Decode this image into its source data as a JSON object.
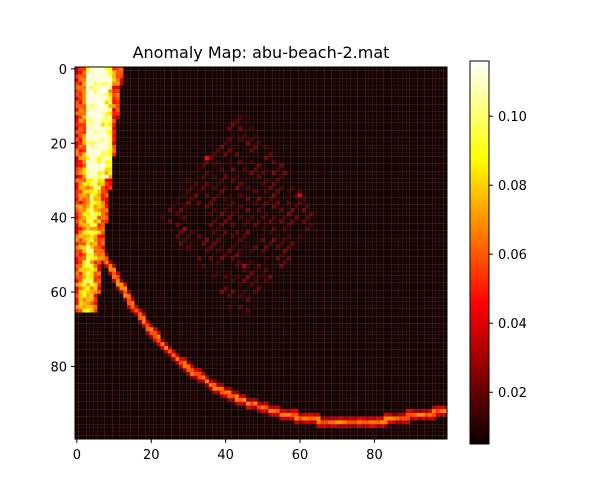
{
  "chart_data": {
    "type": "heatmap",
    "title": "Anomaly Map: abu-beach-2.mat",
    "xlabel": "",
    "ylabel": "",
    "grid_size": [
      100,
      100
    ],
    "xlim": [
      -0.5,
      99.5
    ],
    "ylim": [
      99.5,
      -0.5
    ],
    "x_ticks": [
      0,
      20,
      40,
      60,
      80
    ],
    "y_ticks": [
      0,
      20,
      40,
      60,
      80
    ],
    "colormap": "hot",
    "colorbar": {
      "range": [
        0.005,
        0.116
      ],
      "ticks": [
        0.02,
        0.04,
        0.06,
        0.08,
        0.1
      ],
      "tick_labels": [
        "0.02",
        "0.04",
        "0.06",
        "0.08",
        "0.10"
      ]
    },
    "background_value": 0.007,
    "features": [
      {
        "kind": "curve",
        "description": "bright arc",
        "points": [
          [
            2,
            41
          ],
          [
            4,
            45
          ],
          [
            7,
            50
          ],
          [
            10,
            55
          ],
          [
            14,
            62
          ],
          [
            18,
            68
          ],
          [
            22,
            73
          ],
          [
            27,
            78
          ],
          [
            32,
            82
          ],
          [
            38,
            86
          ],
          [
            44,
            89
          ],
          [
            50,
            91
          ],
          [
            56,
            93
          ],
          [
            62,
            94
          ],
          [
            68,
            95
          ],
          [
            74,
            95
          ],
          [
            80,
            95
          ],
          [
            86,
            94
          ],
          [
            92,
            93
          ],
          [
            99,
            92
          ]
        ],
        "value": 0.055
      },
      {
        "kind": "band",
        "description": "left edge bright band",
        "rows": [
          0,
          65
        ],
        "cols_from": 0,
        "cols_to_top": 12,
        "cols_to_mid": 5,
        "peak_value": 0.112
      },
      {
        "kind": "diamond",
        "description": "faint textured diamond",
        "center": [
          44,
          40
        ],
        "half_width": 22,
        "half_height": 28,
        "value": 0.012
      },
      {
        "kind": "points",
        "description": "isolated hot pixels",
        "points": [
          [
            35,
            24,
            0.045
          ],
          [
            60,
            34,
            0.04
          ],
          [
            29,
            43,
            0.03
          ],
          [
            45,
            53,
            0.03
          ],
          [
            8,
            2,
            0.11
          ]
        ]
      }
    ]
  }
}
